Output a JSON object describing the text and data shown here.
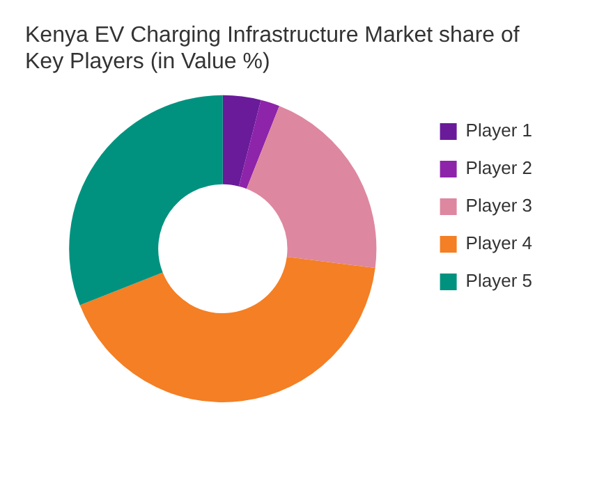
{
  "chart_data": {
    "type": "donut",
    "title": "Kenya EV Charging Infrastructure Market share of Key Players (in Value %)",
    "categories": [
      "Player 1",
      "Player 2",
      "Player 3",
      "Player 4",
      "Player 5"
    ],
    "values": [
      4,
      2,
      21,
      42,
      31
    ],
    "colors": [
      "#6a1b9a",
      "#8e24aa",
      "#de87a0",
      "#f47f24",
      "#00927f"
    ],
    "legend": "right"
  }
}
